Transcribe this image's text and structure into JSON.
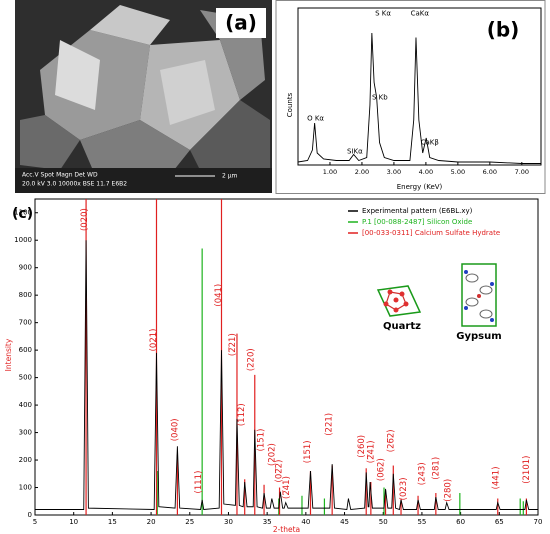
{
  "panel_labels": [
    "(a)",
    "(b)",
    "(c)"
  ],
  "sem_caption": {
    "line1": "Acc.V  Spot Magn    Det  WD",
    "line2": "20.0 kV 3.0   10000x  BSE 11.7 E6B2",
    "scale": "2 μm"
  },
  "insets": {
    "quartz": "Quartz",
    "gypsum": "Gypsum"
  },
  "chart_data": [
    {
      "type": "line",
      "xlabel": "Energy (KeV)",
      "ylabel": "Counts",
      "xlim": [
        0,
        7.6
      ],
      "ylim": [
        0,
        100
      ],
      "xticks": [
        {
          "value": 1,
          "label": "1.00"
        },
        {
          "value": 2,
          "label": "2.00"
        },
        {
          "value": 3,
          "label": "3.00"
        },
        {
          "value": 4,
          "label": "4.00"
        },
        {
          "value": 5,
          "label": "5.00"
        },
        {
          "value": 6,
          "label": "6.00"
        },
        {
          "value": 7,
          "label": "7.00"
        }
      ],
      "series": [
        {
          "color": "#000000",
          "x": [
            0.0,
            0.3,
            0.45,
            0.52,
            0.6,
            0.8,
            1.2,
            1.6,
            1.74,
            1.9,
            2.15,
            2.25,
            2.31,
            2.38,
            2.46,
            2.55,
            2.7,
            3.0,
            3.5,
            3.62,
            3.69,
            3.78,
            3.9,
            4.01,
            4.12,
            4.4,
            5.0,
            6.0,
            7.0,
            7.6
          ],
          "values": [
            2,
            3,
            10,
            28,
            8,
            4,
            3,
            3,
            7,
            3,
            5,
            40,
            88,
            55,
            45,
            15,
            5,
            3,
            3,
            30,
            85,
            30,
            8,
            18,
            5,
            3,
            2,
            2,
            1,
            1
          ]
        }
      ],
      "annotations": [
        {
          "text": "O Kα",
          "x": 0.55,
          "y": 31
        },
        {
          "text": "SIKα",
          "x": 1.78,
          "y": 9
        },
        {
          "text": "S Kα",
          "x": 2.66,
          "y": 101
        },
        {
          "text": "S Kb",
          "x": 2.56,
          "y": 45
        },
        {
          "text": "CaKα",
          "x": 3.81,
          "y": 101
        },
        {
          "text": "CaKβ",
          "x": 4.12,
          "y": 15
        }
      ]
    },
    {
      "type": "line",
      "xlabel": "2-theta",
      "ylabel": "Intensity",
      "legend": "upper right",
      "xlim": [
        5,
        70
      ],
      "ylim": [
        0,
        1150
      ],
      "xticks": [
        5,
        10,
        15,
        20,
        25,
        30,
        35,
        40,
        45,
        50,
        55,
        60,
        65,
        70
      ],
      "yticks": [
        0,
        100,
        200,
        300,
        400,
        500,
        600,
        700,
        800,
        900,
        1000,
        1100
      ],
      "series": [
        {
          "name": "Experimental pattern (E6BL.xy)",
          "color": "#000000",
          "x": [
            5,
            11.3,
            11.6,
            11.9,
            20.4,
            20.7,
            21.0,
            23.1,
            23.4,
            23.7,
            26.4,
            26.6,
            26.8,
            28.8,
            29.1,
            29.4,
            30.9,
            31.1,
            31.4,
            31.9,
            32.1,
            32.4,
            33.2,
            33.4,
            33.7,
            34.4,
            34.6,
            34.9,
            35.4,
            35.6,
            35.9,
            36.5,
            36.7,
            37.0,
            37.2,
            37.4,
            37.7,
            40.3,
            40.6,
            40.9,
            43.1,
            43.4,
            43.7,
            45.3,
            45.5,
            45.8,
            47.6,
            47.8,
            48.05,
            48.15,
            48.3,
            48.6,
            50.1,
            50.3,
            50.6,
            51.1,
            51.3,
            51.6,
            52.1,
            52.3,
            52.6,
            54.3,
            54.5,
            54.8,
            56.6,
            56.8,
            57.1,
            58.0,
            58.2,
            58.5,
            64.6,
            64.8,
            65.1,
            68.3,
            68.5,
            68.8,
            70
          ],
          "values": [
            20,
            20,
            1000,
            25,
            20,
            590,
            30,
            25,
            250,
            25,
            20,
            55,
            20,
            25,
            600,
            40,
            35,
            350,
            35,
            30,
            120,
            30,
            30,
            310,
            30,
            25,
            80,
            25,
            25,
            60,
            25,
            25,
            85,
            25,
            25,
            45,
            25,
            25,
            160,
            25,
            25,
            185,
            25,
            20,
            60,
            20,
            25,
            155,
            30,
            30,
            120,
            25,
            25,
            95,
            25,
            25,
            150,
            25,
            20,
            55,
            20,
            20,
            55,
            20,
            20,
            65,
            20,
            20,
            45,
            20,
            20,
            45,
            20,
            20,
            55,
            20,
            20
          ]
        },
        {
          "name": "P.1 [00-088-2487] Silicon Oxide",
          "color": "#1db31d",
          "kind": "stick",
          "x": [
            20.8,
            26.6,
            36.5,
            39.5,
            42.4,
            50.1,
            59.9,
            67.7,
            68.1
          ],
          "values": [
            160,
            970,
            60,
            70,
            60,
            100,
            80,
            60,
            50
          ]
        },
        {
          "name": "[00-033-0311] Calcium Sulfate Hydrate",
          "color": "#e02020",
          "kind": "stick",
          "x": [
            11.6,
            20.7,
            23.4,
            29.1,
            31.1,
            32.1,
            33.4,
            34.6,
            36.6,
            40.6,
            43.4,
            47.8,
            48.4,
            50.3,
            51.3,
            52.3,
            54.5,
            56.8,
            64.8,
            68.5
          ],
          "values": [
            1150,
            1150,
            220,
            1150,
            660,
            130,
            510,
            110,
            100,
            160,
            180,
            170,
            120,
            90,
            180,
            60,
            70,
            80,
            60,
            60
          ]
        }
      ],
      "annotations": [
        {
          "text": "(020)",
          "x": 11.4,
          "y": 1075
        },
        {
          "text": "(021)",
          "x": 20.3,
          "y": 637
        },
        {
          "text": "(040)",
          "x": 23.1,
          "y": 310
        },
        {
          "text": "(111)",
          "x": 26.1,
          "y": 120
        },
        {
          "text": "(041)",
          "x": 28.7,
          "y": 800
        },
        {
          "text": "(2̅21)",
          "x": 30.5,
          "y": 620
        },
        {
          "text": "(112)",
          "x": 31.7,
          "y": 365
        },
        {
          "text": "(220)",
          "x": 32.9,
          "y": 565
        },
        {
          "text": "(151)",
          "x": 34.2,
          "y": 273
        },
        {
          "text": "(202)",
          "x": 35.6,
          "y": 220
        },
        {
          "text": "(02̅2)",
          "x": 36.5,
          "y": 160
        },
        {
          "text": "(2̅41)",
          "x": 37.5,
          "y": 100
        },
        {
          "text": "(151)",
          "x": 40.2,
          "y": 230
        },
        {
          "text": "(221)",
          "x": 43.0,
          "y": 330
        },
        {
          "text": "(260)",
          "x": 47.2,
          "y": 250
        },
        {
          "text": "(2̅41)",
          "x": 48.4,
          "y": 230
        },
        {
          "text": "(062)",
          "x": 49.7,
          "y": 165
        },
        {
          "text": "(26̅2)",
          "x": 51.0,
          "y": 270
        },
        {
          "text": "(023)",
          "x": 52.6,
          "y": 95
        },
        {
          "text": "(243)",
          "x": 55.0,
          "y": 150
        },
        {
          "text": "(281)",
          "x": 56.8,
          "y": 170
        },
        {
          "text": "(280)",
          "x": 58.4,
          "y": 90
        },
        {
          "text": "(441)",
          "x": 64.6,
          "y": 135
        },
        {
          "text": "(2101)",
          "x": 68.5,
          "y": 165
        }
      ]
    }
  ]
}
